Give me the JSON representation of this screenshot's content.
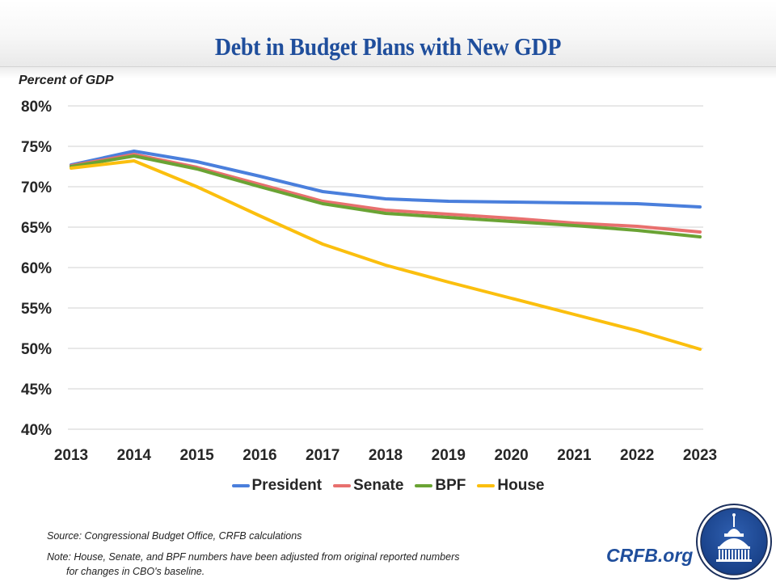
{
  "header": {
    "title": "Debt in Budget Plans with New GDP"
  },
  "chart_data": {
    "type": "line",
    "title": "Debt in Budget Plans with New GDP",
    "ylabel": "Percent of GDP",
    "xlabel": "",
    "x": [
      "2013",
      "2014",
      "2015",
      "2016",
      "2017",
      "2018",
      "2019",
      "2020",
      "2021",
      "2022",
      "2023"
    ],
    "ylim": [
      40,
      80
    ],
    "yticks": [
      80,
      75,
      70,
      65,
      60,
      55,
      50,
      45,
      40
    ],
    "ytick_labels": [
      "80%",
      "75%",
      "70%",
      "65%",
      "60%",
      "55%",
      "50%",
      "45%",
      "40%"
    ],
    "grid": true,
    "legend_position": "bottom",
    "series": [
      {
        "name": "President",
        "color": "#4a7fdc",
        "values": [
          72.7,
          74.4,
          73.1,
          71.3,
          69.4,
          68.5,
          68.2,
          68.1,
          68.0,
          67.9,
          67.5
        ]
      },
      {
        "name": "Senate",
        "color": "#e8706e",
        "values": [
          72.6,
          74.0,
          72.4,
          70.3,
          68.2,
          67.1,
          66.6,
          66.1,
          65.5,
          65.1,
          64.4
        ]
      },
      {
        "name": "BPF",
        "color": "#6aa334",
        "values": [
          72.5,
          73.8,
          72.2,
          70.0,
          67.9,
          66.7,
          66.2,
          65.7,
          65.2,
          64.6,
          63.8
        ]
      },
      {
        "name": "House",
        "color": "#fbbf0e",
        "values": [
          72.3,
          73.2,
          70.0,
          66.4,
          62.9,
          60.3,
          58.2,
          56.2,
          54.2,
          52.2,
          49.9
        ]
      }
    ]
  },
  "footer": {
    "source": "Source: Congressional Budget Office, CRFB calculations",
    "note_line1": "Note: House, Senate, and BPF numbers have been adjusted from original reported numbers",
    "note_line2": "for changes in CBO's baseline.",
    "brand": "CRFB.org",
    "logo_icon": "capitol-dome-icon"
  }
}
